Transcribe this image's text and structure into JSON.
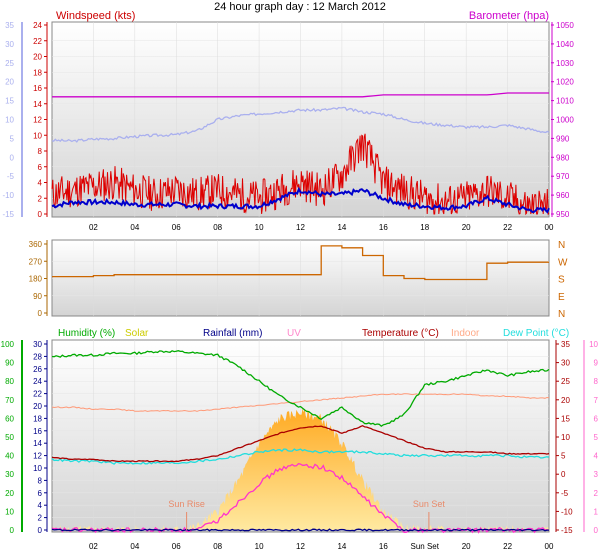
{
  "page_title": "24 hour graph day : 12 March 2012",
  "x_ticks": [
    "02",
    "04",
    "06",
    "08",
    "10",
    "12",
    "14",
    "16",
    "18",
    "20",
    "22",
    "00"
  ],
  "x_ticks_bottom": [
    "02",
    "04",
    "06",
    "08",
    "10",
    "12",
    "14",
    "16",
    "Sun Set",
    "20",
    "22",
    "00"
  ],
  "chart_data": [
    {
      "type": "line",
      "title": "",
      "legend": {
        "left": "Windspeed (kts)",
        "right": "Barometer (hpa)"
      },
      "axes": {
        "outer_left_ticks": [
          "35",
          "30",
          "25",
          "20",
          "15",
          "10",
          "5",
          "0",
          "-5",
          "-10",
          "-15"
        ],
        "left_ticks": [
          "24",
          "22",
          "20",
          "18",
          "16",
          "14",
          "12",
          "10",
          "8",
          "6",
          "4",
          "2",
          "0"
        ],
        "right_ticks": [
          "1050",
          "1040",
          "1030",
          "1020",
          "1010",
          "1000",
          "990",
          "980",
          "970",
          "960",
          "950"
        ],
        "left_range": [
          0,
          25
        ],
        "right_range": [
          948,
          1052
        ],
        "outer_left_range": [
          -15,
          35
        ]
      },
      "x_hours": [
        0,
        1,
        2,
        3,
        4,
        5,
        6,
        7,
        8,
        9,
        10,
        11,
        12,
        13,
        14,
        15,
        16,
        17,
        18,
        19,
        20,
        21,
        22,
        23,
        24
      ],
      "series": [
        {
          "name": "Barometer (hpa)",
          "color": "#cc00cc",
          "axis": "right",
          "values": [
            1012,
            1012,
            1012,
            1012,
            1012,
            1012,
            1012,
            1012,
            1012,
            1012,
            1012,
            1012,
            1012,
            1012,
            1012,
            1012,
            1013,
            1013,
            1013,
            1013,
            1013,
            1013,
            1014,
            1014,
            1014
          ]
        },
        {
          "name": "Windspeed (kts)",
          "color": "#dd0000",
          "axis": "left",
          "values": [
            2.5,
            3,
            3.5,
            4,
            3,
            2.5,
            3,
            2.5,
            3,
            2.5,
            2,
            3,
            4,
            3,
            5,
            9,
            4,
            3,
            2,
            1.5,
            2,
            3,
            2,
            1,
            1
          ]
        },
        {
          "color": "#0000cc",
          "axis": "left",
          "values": [
            1,
            1.5,
            1.5,
            1.5,
            1.2,
            1.2,
            1.2,
            1.0,
            1.0,
            1.0,
            1.0,
            2,
            3,
            2.5,
            2.5,
            3,
            2,
            1.2,
            1.0,
            0.8,
            1.0,
            2,
            1.2,
            0.5,
            0.5
          ]
        },
        {
          "color": "#aab0ee",
          "axis": "outer_left",
          "values": [
            4.5,
            4.3,
            4.8,
            5.0,
            5.5,
            5.8,
            6.0,
            7,
            10,
            11,
            11.5,
            12,
            12.5,
            12.5,
            13,
            12,
            11.5,
            10,
            9,
            8.5,
            8,
            8,
            8.5,
            7.5,
            6.5
          ]
        }
      ]
    },
    {
      "type": "line",
      "title": "",
      "legend": {
        "right": [
          "N",
          "W",
          "S",
          "E",
          "N"
        ]
      },
      "axes": {
        "left_ticks": [
          "360",
          "270",
          "180",
          "90",
          "0"
        ],
        "left_range": [
          0,
          360
        ]
      },
      "x_hours": [
        0,
        1,
        2,
        3,
        4,
        5,
        6,
        7,
        8,
        9,
        10,
        11,
        12,
        13,
        14,
        15,
        16,
        17,
        18,
        19,
        20,
        21,
        22,
        23,
        24
      ],
      "series": [
        {
          "name": "Wind Direction",
          "color": "#cc6600",
          "values": [
            190,
            190,
            195,
            200,
            200,
            200,
            200,
            200,
            200,
            200,
            200,
            200,
            200,
            350,
            340,
            300,
            195,
            180,
            175,
            175,
            175,
            260,
            265,
            265,
            265
          ]
        }
      ]
    },
    {
      "type": "line",
      "title": "",
      "legend": [
        "Humidity (%)",
        "Solar",
        "Rainfall (mm)",
        "UV",
        "Temperature (°C)",
        "Indoor",
        "Dew Point (°C)"
      ],
      "axes": {
        "outer_left_ticks": [
          "100",
          "90",
          "80",
          "70",
          "60",
          "50",
          "40",
          "30",
          "20",
          "10",
          "0"
        ],
        "left_ticks": [
          "30",
          "28",
          "26",
          "24",
          "22",
          "20",
          "18",
          "16",
          "14",
          "12",
          "10",
          "8",
          "6",
          "4",
          "2",
          "0"
        ],
        "right_ticks": [
          "35",
          "30",
          "25",
          "20",
          "15",
          "10",
          "5",
          "0",
          "-5",
          "-10",
          "-15"
        ],
        "outer_right_ticks": [
          "10",
          "9",
          "8",
          "7",
          "6",
          "5",
          "4",
          "3",
          "2",
          "1",
          "0"
        ],
        "humidity_range": [
          0,
          100
        ],
        "rainfall_range": [
          0,
          30
        ],
        "temperature_range": [
          -15,
          35
        ],
        "uv_range": [
          0,
          10
        ]
      },
      "annotations": [
        "Sun Rise",
        "Sun Set"
      ],
      "x_hours": [
        0,
        1,
        2,
        3,
        4,
        5,
        6,
        7,
        8,
        9,
        10,
        11,
        12,
        13,
        14,
        15,
        16,
        17,
        18,
        19,
        20,
        21,
        22,
        23,
        24
      ],
      "series": [
        {
          "name": "Humidity (%)",
          "color": "#00aa00",
          "axis": "humidity",
          "values": [
            93,
            94,
            94,
            95,
            95,
            96,
            96,
            95,
            94,
            88,
            80,
            72,
            66,
            60,
            66,
            58,
            56,
            62,
            78,
            80,
            83,
            86,
            83,
            85,
            86
          ]
        },
        {
          "name": "Temperature (°C)",
          "color": "#aa0000",
          "axis": "temperature",
          "values": [
            4.5,
            4,
            4,
            3.5,
            3.5,
            3.5,
            3.5,
            4,
            5,
            7,
            9,
            11,
            12.5,
            13,
            11,
            13,
            11,
            9,
            7,
            6,
            6,
            6,
            5.5,
            5.5,
            5.5
          ]
        },
        {
          "name": "Indoor",
          "color": "#ff9977",
          "axis": "temperature",
          "values": [
            18,
            18,
            17.5,
            17.5,
            17,
            17,
            17,
            17,
            17.5,
            18,
            18.5,
            19,
            19.5,
            20,
            20.5,
            21,
            21.5,
            21.5,
            21.5,
            21.5,
            21.5,
            21,
            21,
            20.5,
            20.5
          ]
        },
        {
          "name": "Dew Point (°C)",
          "color": "#22dddd",
          "axis": "temperature",
          "values": [
            4,
            3.5,
            3.5,
            3,
            3,
            3,
            3,
            3.5,
            4,
            5,
            6,
            6.5,
            6.5,
            6,
            6,
            6,
            5.5,
            5,
            5,
            5,
            5,
            5,
            5,
            4.5,
            4.5
          ]
        },
        {
          "name": "Solar",
          "color": "#ffcc33",
          "axis": "rainfall",
          "values": [
            0,
            0,
            0,
            0,
            0,
            0,
            0,
            0.5,
            3,
            8,
            14,
            18,
            19,
            18,
            14,
            8,
            3,
            0.3,
            0,
            0,
            0,
            0,
            0,
            0,
            0
          ]
        },
        {
          "name": "UV",
          "color": "#ff33cc",
          "axis": "uv",
          "values": [
            0,
            0,
            0,
            0,
            0,
            0,
            0,
            0,
            0.5,
            1.5,
            2.5,
            3.3,
            3.5,
            3.4,
            2.8,
            1.8,
            0.8,
            0,
            0,
            0,
            0,
            0,
            0,
            0,
            0
          ]
        },
        {
          "name": "Rainfall (mm)",
          "color": "#000088",
          "axis": "rainfall",
          "values": [
            0,
            0,
            0,
            0,
            0,
            0,
            0,
            0,
            0,
            0,
            0,
            0,
            0,
            0,
            0,
            0,
            0,
            0,
            0,
            0,
            0,
            0,
            0,
            0,
            0
          ]
        }
      ]
    }
  ]
}
